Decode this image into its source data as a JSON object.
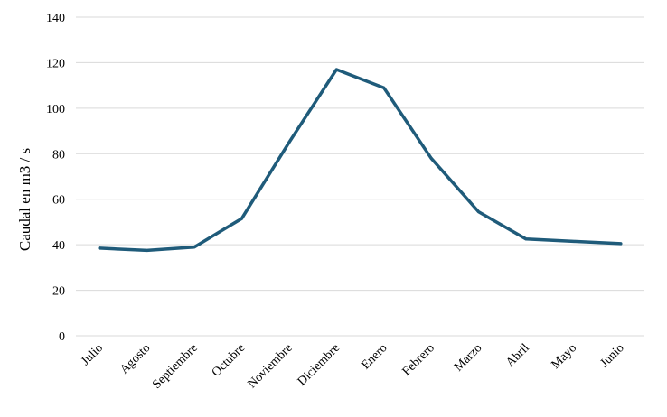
{
  "chart_data": {
    "type": "line",
    "categories": [
      "Julio",
      "Agosto",
      "Septiembre",
      "Octubre",
      "Noviembre",
      "Diciembre",
      "Enero",
      "Febrero",
      "Marzo",
      "Abril",
      "Mayo",
      "Junio"
    ],
    "series": [
      {
        "values": [
          38.5,
          37.5,
          39,
          51.5,
          85,
          117,
          109,
          78,
          54.5,
          42.5,
          41.5,
          40.5
        ],
        "color": "#1f5b7a"
      }
    ],
    "yticks": [
      "0",
      "20",
      "40",
      "60",
      "80",
      "100",
      "120",
      "140"
    ],
    "ylim": [
      0,
      140
    ],
    "ylabel": "Caudal en m3 / s",
    "xlabel": "",
    "grid": true,
    "legend": "none",
    "grid_color": "#d9d9d9"
  }
}
